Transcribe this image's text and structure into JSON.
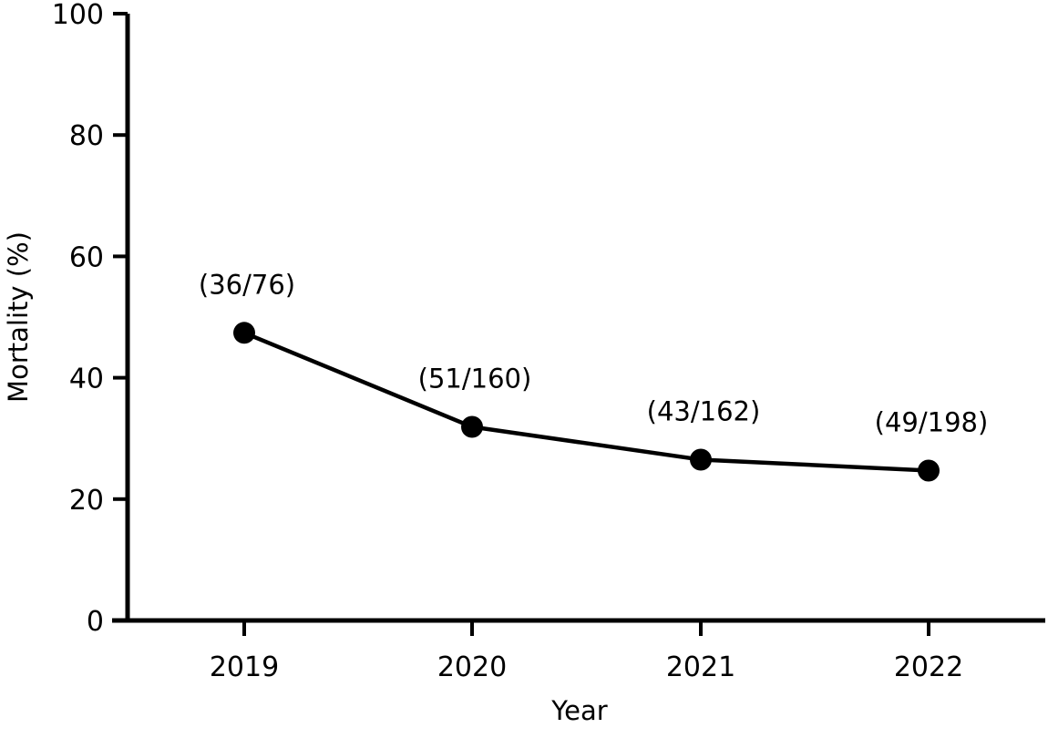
{
  "chart_data": {
    "type": "line",
    "title": "",
    "xlabel": "Year",
    "ylabel": "Mortality (%)",
    "categories": [
      "2019",
      "2020",
      "2021",
      "2022"
    ],
    "series": [
      {
        "values": [
          47.4,
          31.9,
          26.5,
          24.7
        ]
      }
    ],
    "data_labels": [
      "(36/76)",
      "(51/160)",
      "(43/162)",
      "(49/198)"
    ],
    "ylim": [
      0,
      100
    ],
    "yticks": [
      0,
      20,
      40,
      60,
      80,
      100
    ],
    "grid": false,
    "legend": "none",
    "colors": {
      "line": "#000000",
      "marker": "#000000"
    }
  }
}
